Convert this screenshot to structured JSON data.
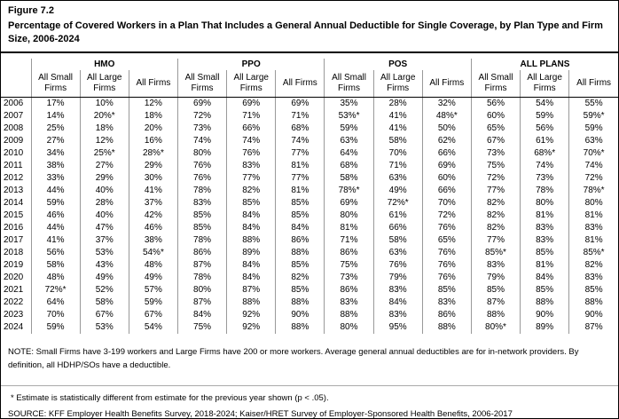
{
  "figure": {
    "label": "Figure 7.2",
    "title": "Percentage of Covered Workers in a Plan That Includes a General Annual Deductible for Single Coverage, by Plan Type and Firm Size, 2006-2024"
  },
  "table": {
    "groups": [
      "HMO",
      "PPO",
      "POS",
      "ALL PLANS"
    ],
    "subheaders": [
      "All Small Firms",
      "All Large Firms",
      "All Firms"
    ],
    "rows": [
      {
        "year": "2006",
        "values": [
          "17%",
          "10%",
          "12%",
          "69%",
          "69%",
          "69%",
          "35%",
          "28%",
          "32%",
          "56%",
          "54%",
          "55%"
        ]
      },
      {
        "year": "2007",
        "values": [
          "14%",
          "20%*",
          "18%",
          "72%",
          "71%",
          "71%",
          "53%*",
          "41%",
          "48%*",
          "60%",
          "59%",
          "59%*"
        ]
      },
      {
        "year": "2008",
        "values": [
          "25%",
          "18%",
          "20%",
          "73%",
          "66%",
          "68%",
          "59%",
          "41%",
          "50%",
          "65%",
          "56%",
          "59%"
        ]
      },
      {
        "year": "2009",
        "values": [
          "27%",
          "12%",
          "16%",
          "74%",
          "74%",
          "74%",
          "63%",
          "58%",
          "62%",
          "67%",
          "61%",
          "63%"
        ]
      },
      {
        "year": "2010",
        "values": [
          "34%",
          "25%*",
          "28%*",
          "80%",
          "76%",
          "77%",
          "64%",
          "70%",
          "66%",
          "73%",
          "68%*",
          "70%*"
        ]
      },
      {
        "year": "2011",
        "values": [
          "38%",
          "27%",
          "29%",
          "76%",
          "83%",
          "81%",
          "68%",
          "71%",
          "69%",
          "75%",
          "74%",
          "74%"
        ]
      },
      {
        "year": "2012",
        "values": [
          "33%",
          "29%",
          "30%",
          "76%",
          "77%",
          "77%",
          "58%",
          "63%",
          "60%",
          "72%",
          "73%",
          "72%"
        ]
      },
      {
        "year": "2013",
        "values": [
          "44%",
          "40%",
          "41%",
          "78%",
          "82%",
          "81%",
          "78%*",
          "49%",
          "66%",
          "77%",
          "78%",
          "78%*"
        ]
      },
      {
        "year": "2014",
        "values": [
          "59%",
          "28%",
          "37%",
          "83%",
          "85%",
          "85%",
          "69%",
          "72%*",
          "70%",
          "82%",
          "80%",
          "80%"
        ]
      },
      {
        "year": "2015",
        "values": [
          "46%",
          "40%",
          "42%",
          "85%",
          "84%",
          "85%",
          "80%",
          "61%",
          "72%",
          "82%",
          "81%",
          "81%"
        ]
      },
      {
        "year": "2016",
        "values": [
          "44%",
          "47%",
          "46%",
          "85%",
          "84%",
          "84%",
          "81%",
          "66%",
          "76%",
          "82%",
          "83%",
          "83%"
        ]
      },
      {
        "year": "2017",
        "values": [
          "41%",
          "37%",
          "38%",
          "78%",
          "88%",
          "86%",
          "71%",
          "58%",
          "65%",
          "77%",
          "83%",
          "81%"
        ]
      },
      {
        "year": "2018",
        "values": [
          "56%",
          "53%",
          "54%*",
          "86%",
          "89%",
          "88%",
          "86%",
          "63%",
          "76%",
          "85%*",
          "85%",
          "85%*"
        ]
      },
      {
        "year": "2019",
        "values": [
          "58%",
          "43%",
          "48%",
          "87%",
          "84%",
          "85%",
          "75%",
          "76%",
          "76%",
          "83%",
          "81%",
          "82%"
        ]
      },
      {
        "year": "2020",
        "values": [
          "48%",
          "49%",
          "49%",
          "78%",
          "84%",
          "82%",
          "73%",
          "79%",
          "76%",
          "79%",
          "84%",
          "83%"
        ]
      },
      {
        "year": "2021",
        "values": [
          "72%*",
          "52%",
          "57%",
          "80%",
          "87%",
          "85%",
          "86%",
          "83%",
          "85%",
          "85%",
          "85%",
          "85%"
        ]
      },
      {
        "year": "2022",
        "values": [
          "64%",
          "58%",
          "59%",
          "87%",
          "88%",
          "88%",
          "83%",
          "84%",
          "83%",
          "87%",
          "88%",
          "88%"
        ]
      },
      {
        "year": "2023",
        "values": [
          "70%",
          "67%",
          "67%",
          "84%",
          "92%",
          "90%",
          "88%",
          "83%",
          "86%",
          "88%",
          "90%",
          "90%"
        ]
      },
      {
        "year": "2024",
        "values": [
          "59%",
          "53%",
          "54%",
          "75%",
          "92%",
          "88%",
          "80%",
          "95%",
          "88%",
          "80%*",
          "89%",
          "87%"
        ]
      }
    ]
  },
  "notes": {
    "note": "NOTE: Small Firms have 3-199 workers and Large Firms have 200 or more workers. Average general annual deductibles are for in-network providers. By definition, all HDHP/SOs have a deductible.",
    "footnote": "* Estimate is statistically different from estimate for the previous year shown (p < .05).",
    "source": "SOURCE: KFF Employer Health Benefits Survey, 2018-2024; Kaiser/HRET Survey of Employer-Sponsored Health Benefits, 2006-2017"
  }
}
